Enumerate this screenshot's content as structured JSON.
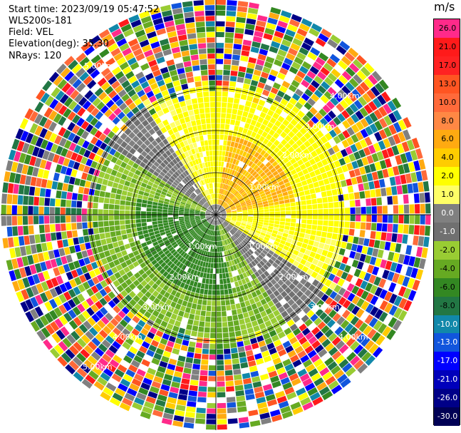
{
  "info": {
    "start_time": "Start time: 2023/09/19 05:47:52",
    "instrument": "WLS200s-181",
    "field": "Field: VEL",
    "elevation": "Elevation(deg): 35.30",
    "nrays": "NRays: 120"
  },
  "unit": "m/s",
  "ring_labels": [
    "1.00km",
    "2.00km",
    "3.00km",
    "4.00km",
    "5.00km"
  ],
  "colorbar": {
    "labels": [
      "26.0",
      "21.0",
      "17.0",
      "13.0",
      "10.0",
      "8.0",
      "6.0",
      "4.0",
      "2.0",
      "1.0",
      "0.0",
      "-1.0",
      "-2.0",
      "-4.0",
      "-6.0",
      "-8.0",
      "-10.0",
      "-13.0",
      "-17.0",
      "-21.0",
      "-26.0",
      "-30.0"
    ],
    "colors": [
      "#ff2a8a",
      "#ff1a1a",
      "#ff2222",
      "#ff5522",
      "#ff6a3a",
      "#ff8844",
      "#ffaa11",
      "#ffcc00",
      "#ffff00",
      "#ffff66",
      "#808080",
      "#707070",
      "#99cc33",
      "#66aa22",
      "#338822",
      "#227744",
      "#1188aa",
      "#1155dd",
      "#0000ff",
      "#0000bb",
      "#000088",
      "#000055"
    ]
  }
}
